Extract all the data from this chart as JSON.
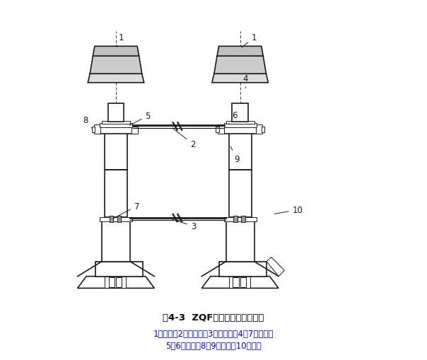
{
  "title": "图4-3  ZQF型防倒防滑切顶支柱",
  "title_color": "#000000",
  "legend_line1": "1－立柱；2－上连杆；3－下连杆；4、7－立销；",
  "legend_line2": "5、6－卡子；8、9－挡块；10－压板",
  "legend_color": "#0000cc",
  "bg_color": "#ffffff",
  "line_color": "#1a1a1a"
}
